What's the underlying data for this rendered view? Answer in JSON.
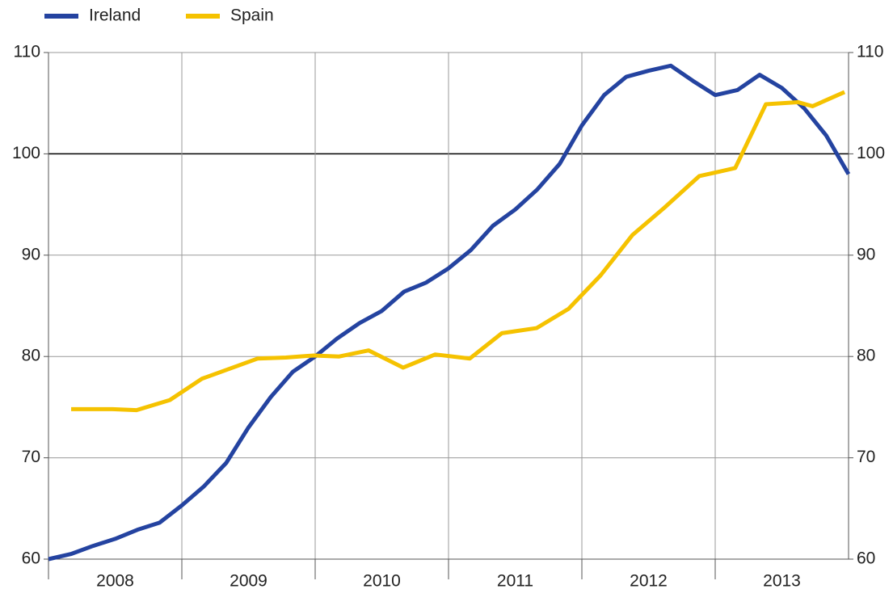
{
  "chart_data": {
    "type": "line",
    "series": [
      {
        "name": "Ireland",
        "color": "#2443a0",
        "x": [
          2008,
          2008.167,
          2008.333,
          2008.5,
          2008.667,
          2008.833,
          2009,
          2009.167,
          2009.333,
          2009.5,
          2009.667,
          2009.833,
          2010,
          2010.167,
          2010.333,
          2010.5,
          2010.667,
          2010.833,
          2011,
          2011.167,
          2011.333,
          2011.5,
          2011.667,
          2011.833,
          2012,
          2012.167,
          2012.333,
          2012.5,
          2012.667,
          2012.833,
          2013,
          2013.167,
          2013.333,
          2013.5,
          2013.667,
          2013.833,
          2014
        ],
        "values": [
          60.0,
          60.5,
          61.3,
          62.0,
          62.9,
          63.6,
          65.3,
          67.2,
          69.5,
          73.0,
          76.0,
          78.5,
          80.0,
          81.8,
          83.3,
          84.5,
          86.4,
          87.3,
          88.7,
          90.5,
          92.9,
          94.5,
          96.5,
          99.0,
          102.8,
          105.8,
          107.6,
          108.2,
          108.7,
          107.2,
          105.8,
          106.3,
          107.8,
          106.5,
          104.5,
          101.8,
          98.0
        ]
      },
      {
        "name": "Spain",
        "color": "#f5c200",
        "x": [
          2008.17,
          2008.48,
          2008.66,
          2008.91,
          2009.15,
          2009.57,
          2009.78,
          2009.99,
          2010.18,
          2010.4,
          2010.66,
          2010.9,
          2011.16,
          2011.4,
          2011.66,
          2011.9,
          2012.14,
          2012.38,
          2012.62,
          2012.88,
          2013.15,
          2013.38,
          2013.62,
          2013.73,
          2013.97
        ],
        "values": [
          74.8,
          74.8,
          74.7,
          75.7,
          77.8,
          79.8,
          79.9,
          80.1,
          80.0,
          80.6,
          78.9,
          80.2,
          79.8,
          82.3,
          82.8,
          84.7,
          88.0,
          92.0,
          94.7,
          97.8,
          98.6,
          104.9,
          105.1,
          104.7,
          106.1
        ]
      }
    ],
    "xlim": [
      2008,
      2014
    ],
    "xticks": [
      {
        "value": 2008,
        "label": "2008"
      },
      {
        "value": 2009,
        "label": "2009"
      },
      {
        "value": 2010,
        "label": "2010"
      },
      {
        "value": 2011,
        "label": "2011"
      },
      {
        "value": 2012,
        "label": "2012"
      },
      {
        "value": 2013,
        "label": "2013"
      }
    ],
    "ylim": [
      60,
      110
    ],
    "yticks": [
      60,
      70,
      80,
      90,
      100,
      110
    ],
    "baseline": 100,
    "grid": true
  }
}
